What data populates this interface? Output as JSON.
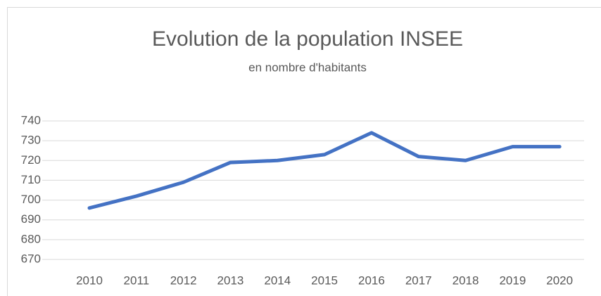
{
  "chart_data": {
    "type": "line",
    "title": "Evolution de la population INSEE",
    "subtitle": "en nombre d'habitants",
    "categories": [
      "2010",
      "2011",
      "2012",
      "2013",
      "2014",
      "2015",
      "2016",
      "2017",
      "2018",
      "2019",
      "2020"
    ],
    "values": [
      696,
      702,
      709,
      719,
      720,
      723,
      734,
      722,
      720,
      727,
      727
    ],
    "color": "#4472c4",
    "ylim": [
      670,
      740
    ],
    "yticks": [
      670,
      680,
      690,
      700,
      710,
      720,
      730,
      740
    ],
    "grid": true
  }
}
